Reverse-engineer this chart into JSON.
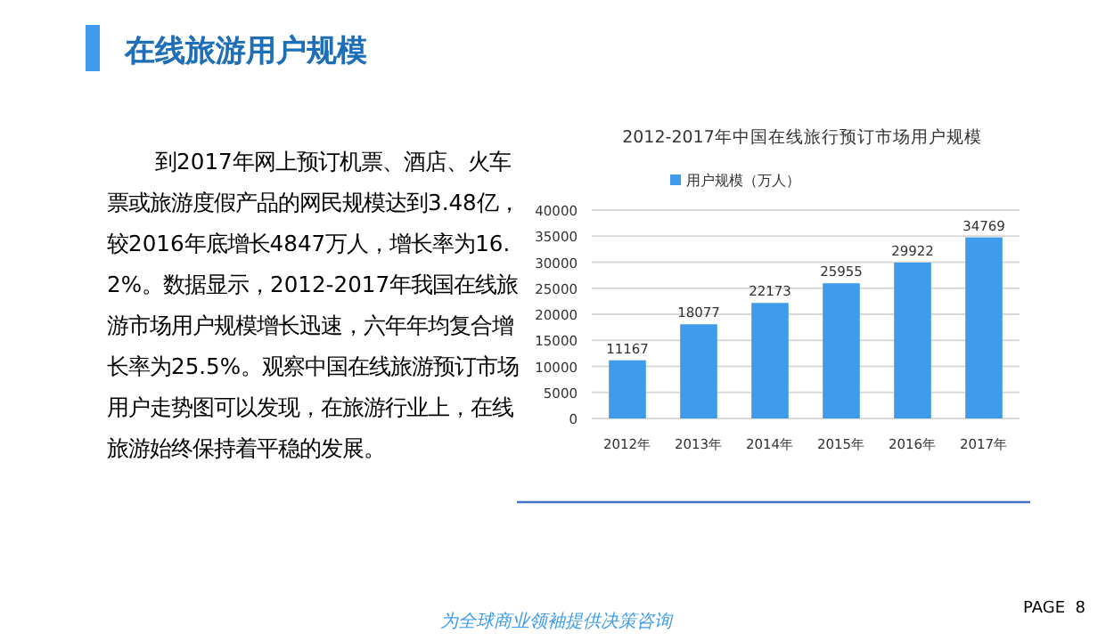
{
  "chart_data": [
    {
      "type": "other",
      "title": "在线旅游用户规模",
      "annotations": [
        "到2017年网上预订机票、酒店、火车票或旅游度假产品的网民规模达到3.48亿，较2016年底增长4847万人，增长率为16.2%。数据显示，2012-2017年我国在线旅游市场用户规模增长迅速，六年年均复合增长率为25.5%。观察中国在线旅游预订市场用户走势图可以发现，在旅游行业上，在线旅游始终保持着平稳的发展。",
        "为全球商业领袖提供决策咨询",
        "PAGE  8"
      ]
    },
    {
      "type": "bar",
      "title": "2012-2017年中国在线旅行预订市场用户规模",
      "categories": [
        "2012年",
        "2013年",
        "2014年",
        "2015年",
        "2016年",
        "2017年"
      ],
      "series": [
        {
          "name": "用户规模（万人）",
          "color": "#3f9cec",
          "values": [
            11167,
            18077,
            22173,
            25955,
            29922,
            34769
          ]
        }
      ],
      "ylim": [
        0,
        40000
      ],
      "yticks": [
        0,
        5000,
        10000,
        15000,
        20000,
        25000,
        30000,
        35000,
        40000
      ],
      "grid": "y",
      "legend": "top",
      "data_labels": true
    }
  ]
}
